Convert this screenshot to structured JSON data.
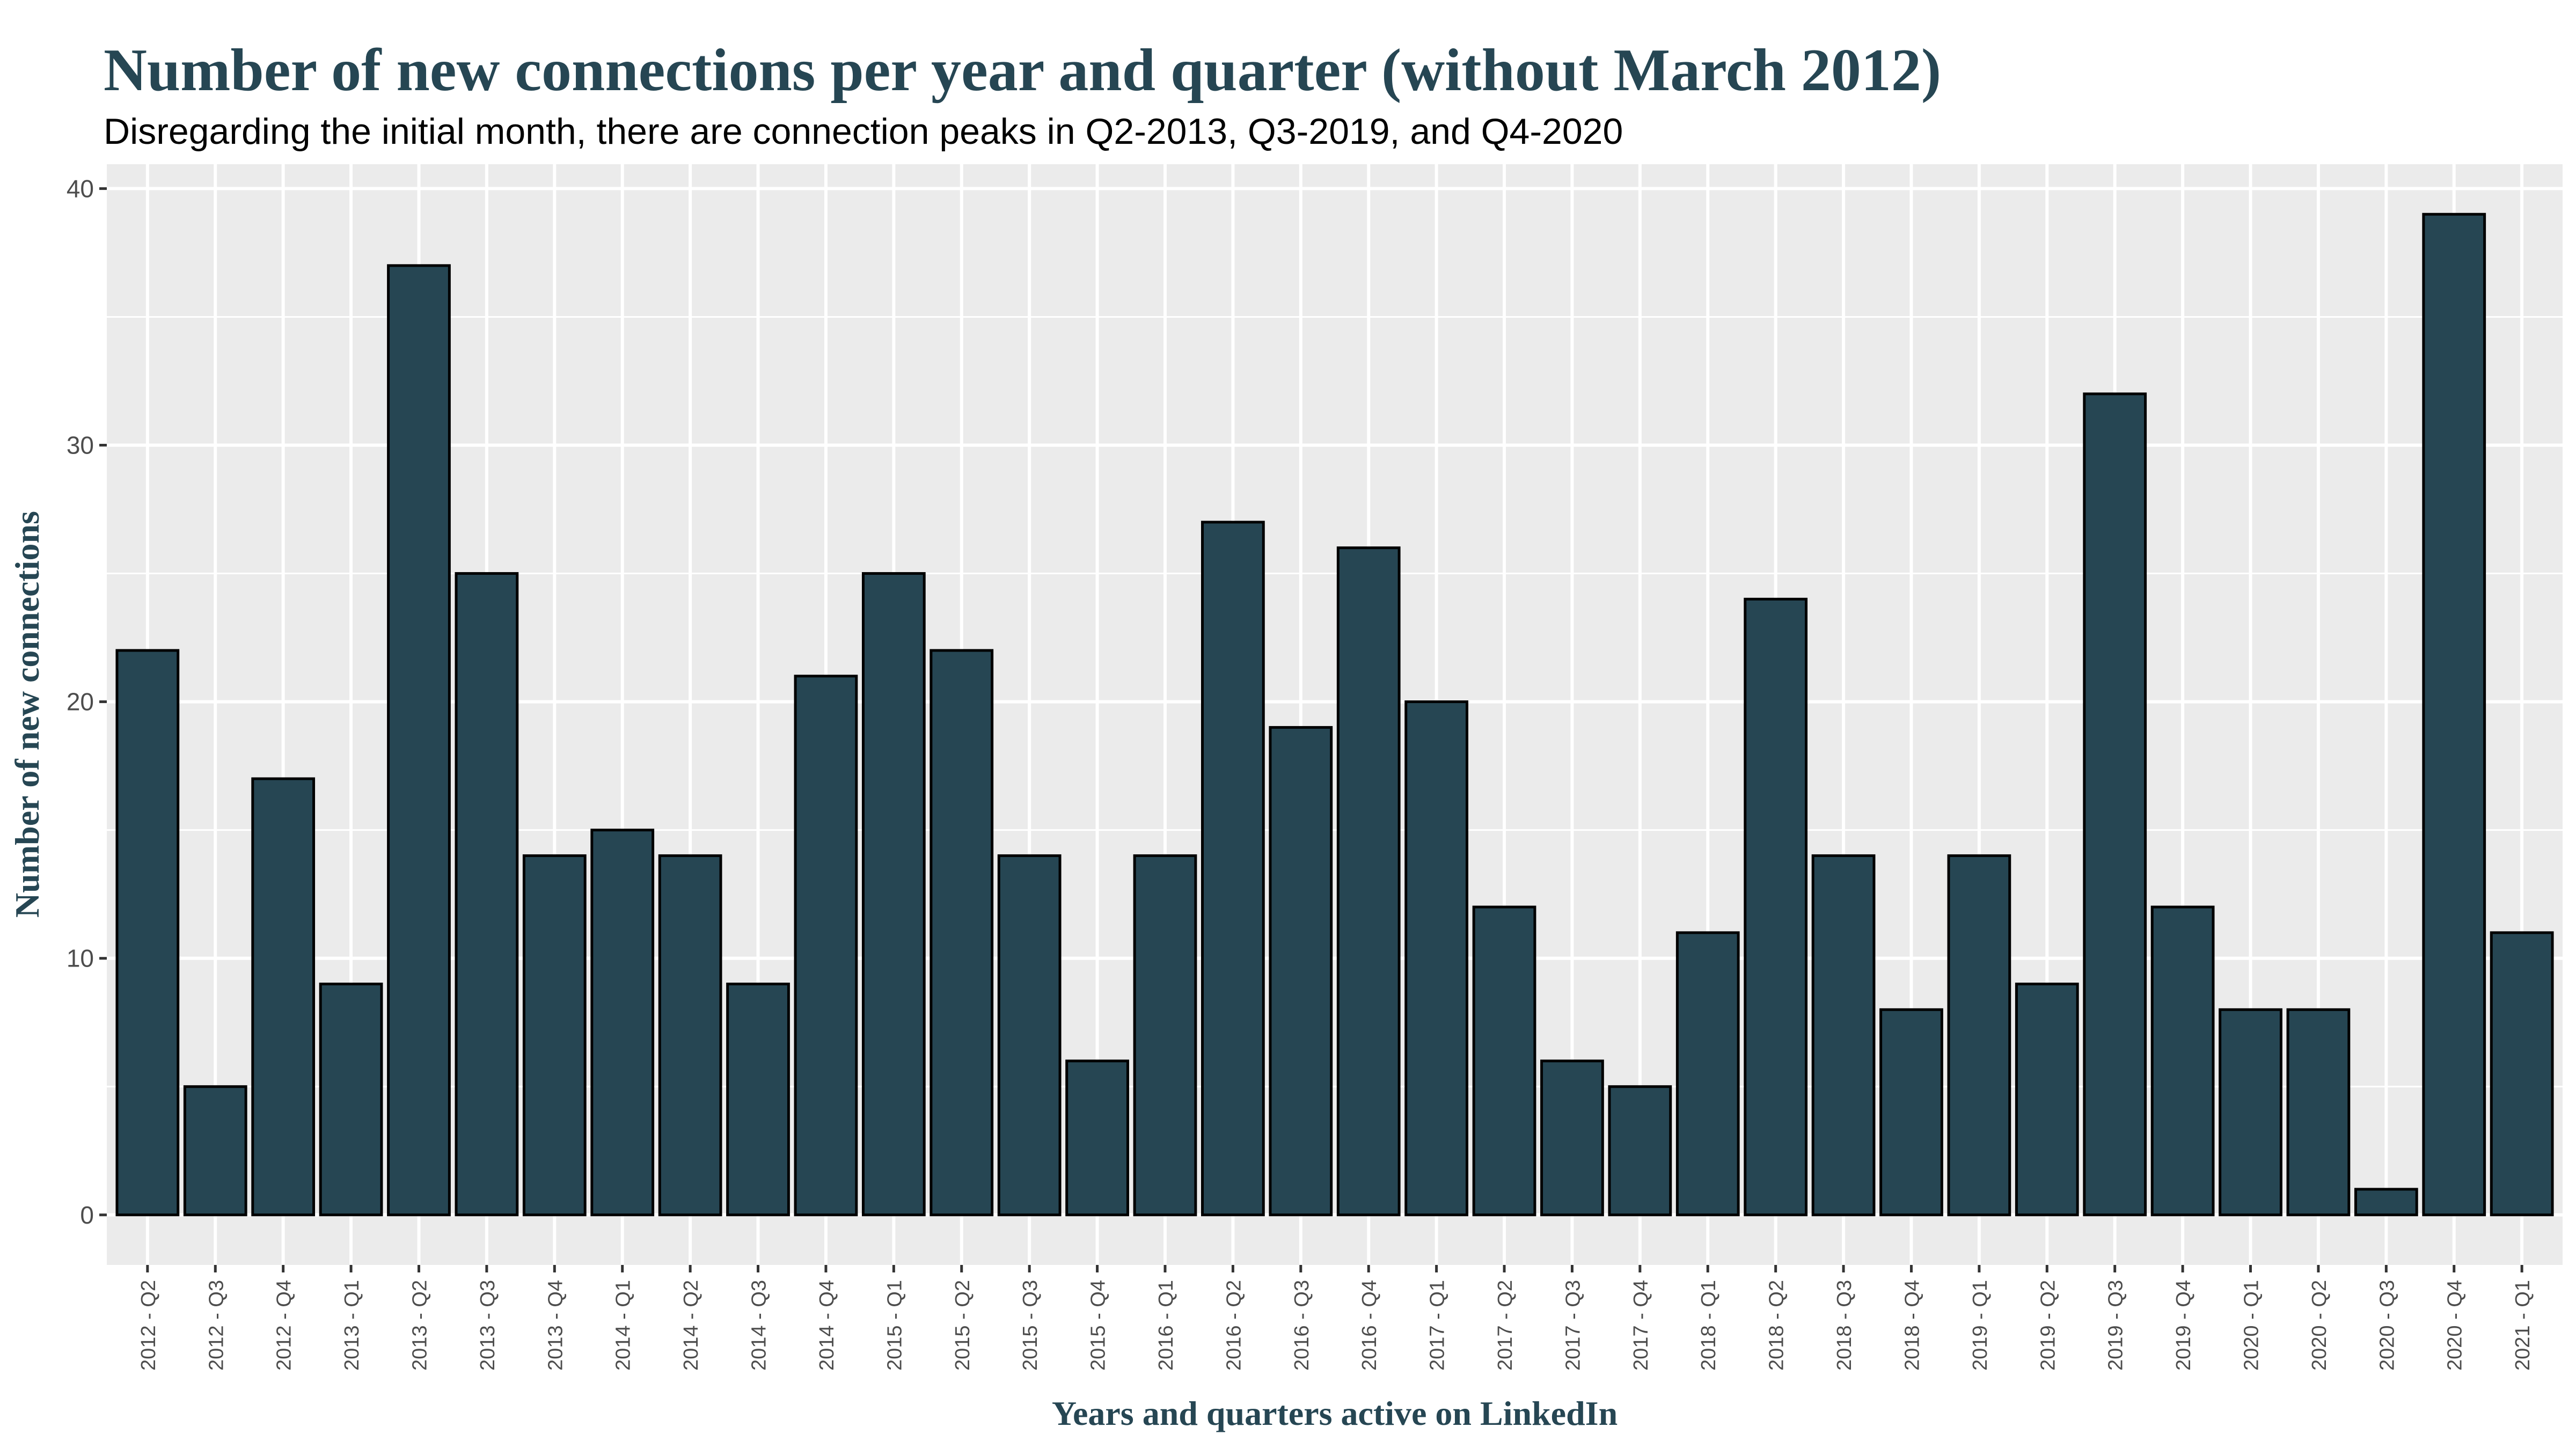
{
  "chart_data": {
    "type": "bar",
    "title": "Number of new connections per year and quarter (without March 2012)",
    "subtitle": "Disregarding the initial month, there are connection peaks in Q2-2013, Q3-2019, and Q4-2020",
    "xlabel": "Years and quarters active on LinkedIn",
    "ylabel": "Number of new connections",
    "ylim": [
      -1.95,
      40.95
    ],
    "yticks": [
      0,
      10,
      20,
      30,
      40
    ],
    "grid": true,
    "categories": [
      "2012 - Q2",
      "2012 - Q3",
      "2012 - Q4",
      "2013 - Q1",
      "2013 - Q2",
      "2013 - Q3",
      "2013 - Q4",
      "2014 - Q1",
      "2014 - Q2",
      "2014 - Q3",
      "2014 - Q4",
      "2015 - Q1",
      "2015 - Q2",
      "2015 - Q3",
      "2015 - Q4",
      "2016 - Q1",
      "2016 - Q2",
      "2016 - Q3",
      "2016 - Q4",
      "2017 - Q1",
      "2017 - Q2",
      "2017 - Q3",
      "2017 - Q4",
      "2018 - Q1",
      "2018 - Q2",
      "2018 - Q3",
      "2018 - Q4",
      "2019 - Q1",
      "2019 - Q2",
      "2019 - Q3",
      "2019 - Q4",
      "2020 - Q1",
      "2020 - Q2",
      "2020 - Q3",
      "2020 - Q4",
      "2021 - Q1"
    ],
    "values": [
      22,
      5,
      17,
      9,
      37,
      25,
      14,
      15,
      14,
      9,
      21,
      25,
      22,
      14,
      6,
      14,
      27,
      19,
      26,
      20,
      12,
      6,
      5,
      11,
      24,
      14,
      8,
      14,
      9,
      32,
      12,
      8,
      8,
      1,
      39,
      11
    ],
    "colors": {
      "bar_fill": "#264653",
      "bar_stroke": "#000000",
      "title": "#264653",
      "panel": "#ebebeb",
      "grid": "#ffffff"
    }
  }
}
